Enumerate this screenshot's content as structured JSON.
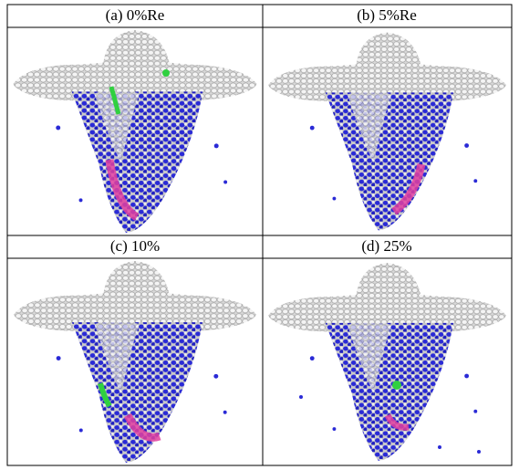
{
  "panels": [
    {
      "label": "(a) 0%Re"
    },
    {
      "label": "(b) 5%Re"
    },
    {
      "label": "(c) 10%"
    },
    {
      "label": "(d) 25%"
    }
  ]
}
